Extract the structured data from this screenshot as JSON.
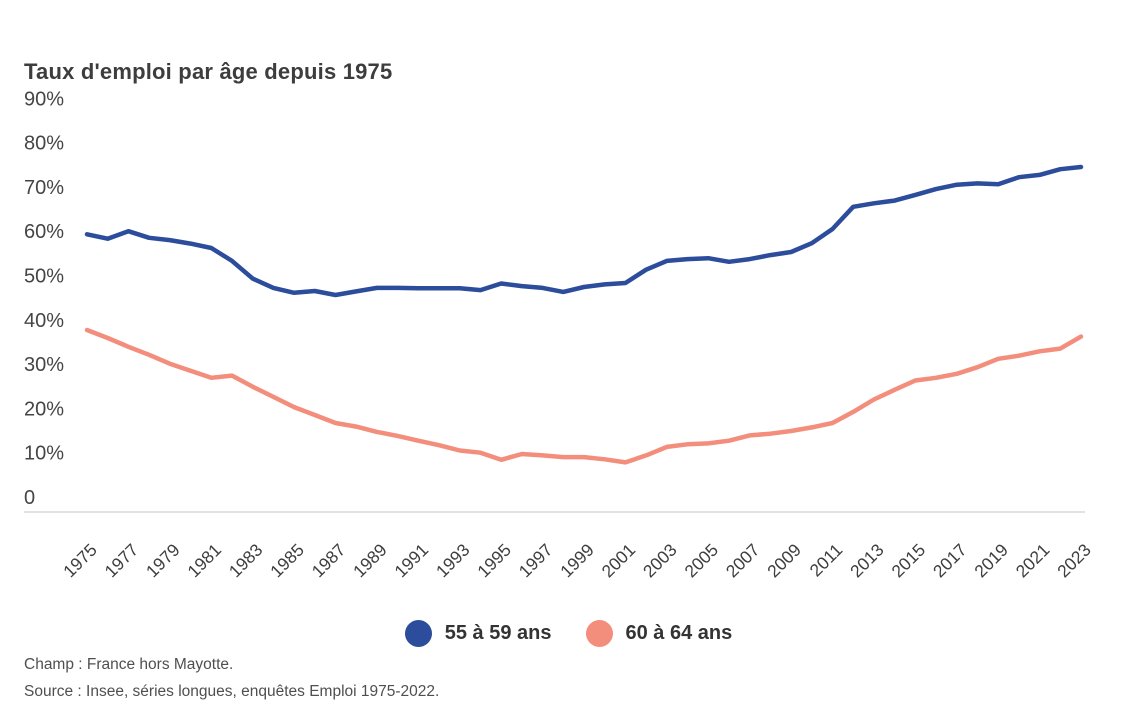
{
  "header": {
    "title": "Taux d'emploi par âge depuis 1975"
  },
  "chart_data": {
    "type": "line",
    "title": "Taux d'emploi par âge depuis 1975",
    "x": [
      1975,
      1976,
      1977,
      1978,
      1979,
      1980,
      1981,
      1982,
      1983,
      1984,
      1985,
      1986,
      1987,
      1988,
      1989,
      1990,
      1991,
      1992,
      1993,
      1994,
      1995,
      1996,
      1997,
      1998,
      1999,
      2000,
      2001,
      2002,
      2003,
      2004,
      2005,
      2006,
      2007,
      2008,
      2009,
      2010,
      2011,
      2012,
      2013,
      2014,
      2015,
      2016,
      2017,
      2018,
      2019,
      2020,
      2021,
      2022,
      2023
    ],
    "x_tick_labels": [
      "1975",
      "1977",
      "1979",
      "1981",
      "1983",
      "1985",
      "1987",
      "1989",
      "1991",
      "1993",
      "1995",
      "1997",
      "1999",
      "2001",
      "2003",
      "2005",
      "2007",
      "2009",
      "2011",
      "2013",
      "2015",
      "2017",
      "2019",
      "2021",
      "2023"
    ],
    "y_ticks": [
      {
        "label": "90%",
        "value": 90
      },
      {
        "label": "80%",
        "value": 80
      },
      {
        "label": "70%",
        "value": 70
      },
      {
        "label": "60%",
        "value": 60
      },
      {
        "label": "50%",
        "value": 50
      },
      {
        "label": "40%",
        "value": 40
      },
      {
        "label": "30%",
        "value": 30
      },
      {
        "label": "20%",
        "value": 20
      },
      {
        "label": "10%",
        "value": 10
      },
      {
        "label": "0",
        "value": 0
      }
    ],
    "ylim": [
      0,
      90
    ],
    "unit": "%",
    "grid": false,
    "legend_position": "bottom",
    "series": [
      {
        "name": "55 à 59 ans",
        "color": "#2c4c9c",
        "values": [
          59.3,
          58.3,
          60.0,
          58.5,
          58.0,
          57.2,
          56.2,
          53.3,
          49.3,
          47.2,
          46.1,
          46.5,
          45.6,
          46.4,
          47.2,
          47.2,
          47.1,
          47.1,
          47.1,
          46.7,
          48.2,
          47.6,
          47.2,
          46.3,
          47.4,
          48.0,
          48.3,
          51.3,
          53.3,
          53.7,
          53.9,
          53.1,
          53.7,
          54.6,
          55.3,
          57.3,
          60.5,
          65.5,
          66.3,
          66.9,
          68.2,
          69.5,
          70.5,
          70.8,
          70.6,
          72.2,
          72.7,
          74.0,
          74.5
        ]
      },
      {
        "name": "60 à 64 ans",
        "color": "#f48e7c",
        "values": [
          37.7,
          35.9,
          33.9,
          32.1,
          30.1,
          28.5,
          26.9,
          27.4,
          24.9,
          22.6,
          20.3,
          18.5,
          16.7,
          15.9,
          14.7,
          13.8,
          12.7,
          11.7,
          10.5,
          10.0,
          8.4,
          9.7,
          9.4,
          9.0,
          9.0,
          8.5,
          7.8,
          9.4,
          11.3,
          11.9,
          12.1,
          12.7,
          13.9,
          14.3,
          14.9,
          15.7,
          16.7,
          19.2,
          22.0,
          24.2,
          26.3,
          26.9,
          27.8,
          29.3,
          31.2,
          31.9,
          32.9,
          33.5,
          36.2
        ]
      }
    ]
  },
  "footer": {
    "champ": "Champ : France hors Mayotte.",
    "source": "Source : Insee, séries longues, enquêtes Emploi 1975-2022."
  }
}
